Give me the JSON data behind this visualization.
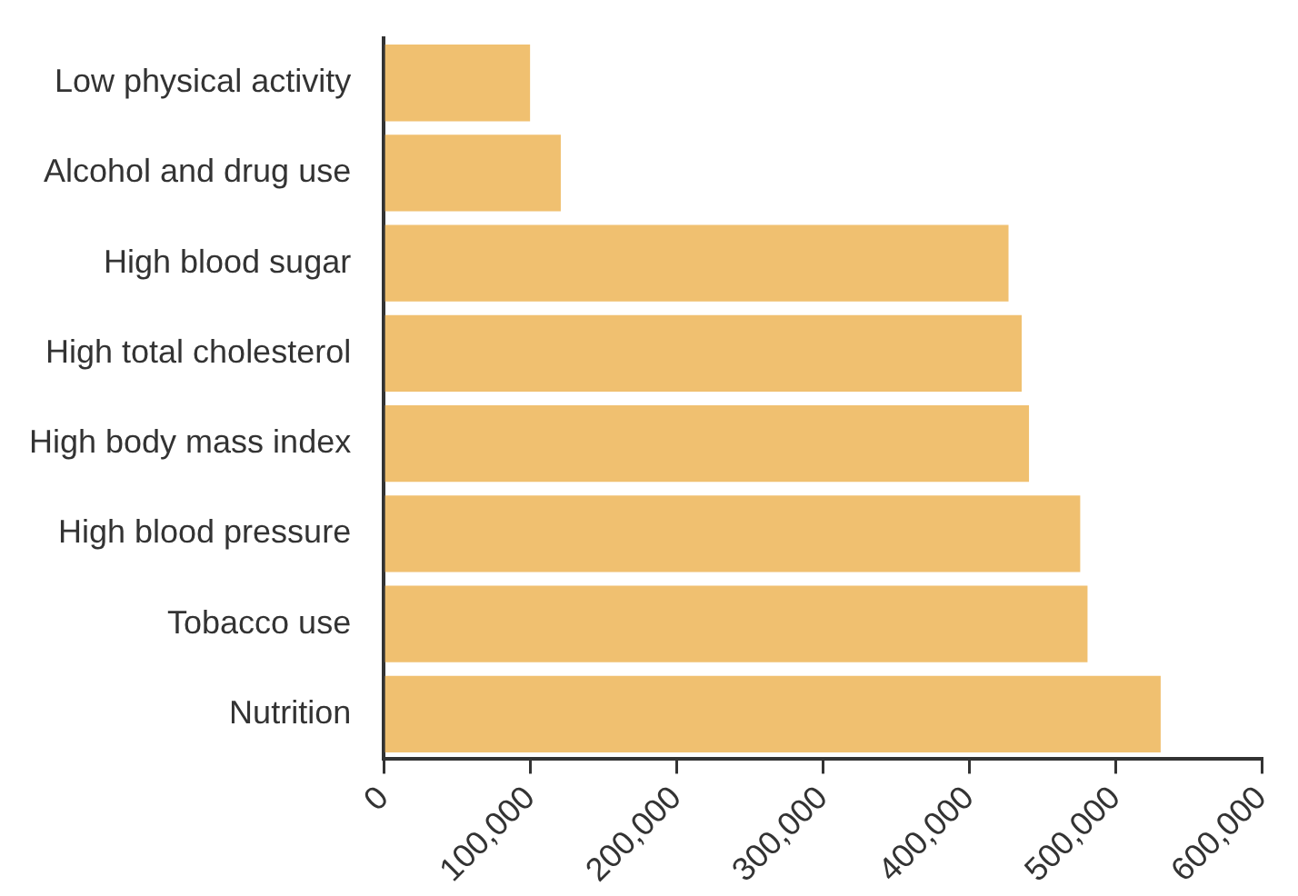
{
  "chart_data": {
    "type": "bar",
    "orientation": "horizontal",
    "categories": [
      "Low physical activity",
      "Alcohol and drug use",
      "High blood sugar",
      "High total cholesterol",
      "High body mass index",
      "High blood pressure",
      "Tobacco use",
      "Nutrition"
    ],
    "values": [
      100000,
      121000,
      427000,
      436000,
      441000,
      476000,
      481000,
      531000
    ],
    "color": "#f0c070",
    "xlim": [
      0,
      600000
    ],
    "xticks": [
      0,
      {
        "value": 100000,
        "label": "100,000"
      },
      {
        "value": 200000,
        "label": "200,000"
      },
      {
        "value": 300000,
        "label": "300,000"
      },
      {
        "value": 400000,
        "label": "400,000"
      },
      {
        "value": 500000,
        "label": "500,000"
      },
      {
        "value": 600000,
        "label": "600,000"
      }
    ],
    "grid": false,
    "legend": false
  }
}
